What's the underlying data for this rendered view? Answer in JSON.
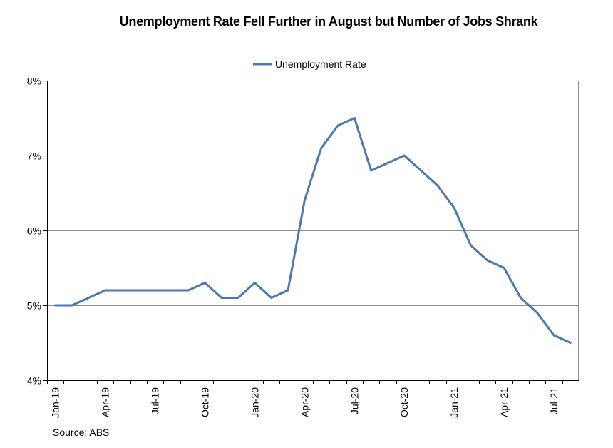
{
  "chart_data": {
    "type": "line",
    "title": "Unemployment Rate Fell Further in August but Number of Jobs Shrank",
    "source": "Source: ABS",
    "ylim": [
      4,
      8
    ],
    "y_ticks": [
      {
        "value": 4,
        "label": "4%"
      },
      {
        "value": 5,
        "label": "5%"
      },
      {
        "value": 6,
        "label": "6%"
      },
      {
        "value": 7,
        "label": "7%"
      },
      {
        "value": 8,
        "label": "8%"
      }
    ],
    "x": [
      "Jan-19",
      "Feb-19",
      "Mar-19",
      "Apr-19",
      "May-19",
      "Jun-19",
      "Jul-19",
      "Aug-19",
      "Sep-19",
      "Oct-19",
      "Nov-19",
      "Dec-19",
      "Jan-20",
      "Feb-20",
      "Mar-20",
      "Apr-20",
      "May-20",
      "Jun-20",
      "Jul-20",
      "Aug-20",
      "Sep-20",
      "Oct-20",
      "Nov-20",
      "Dec-20",
      "Jan-21",
      "Feb-21",
      "Mar-21",
      "Apr-21",
      "May-21",
      "Jun-21",
      "Jul-21",
      "Aug-21"
    ],
    "x_tick_labels": [
      "Jan-19",
      "Apr-19",
      "Jul-19",
      "Oct-19",
      "Jan-20",
      "Apr-20",
      "Jul-20",
      "Oct-20",
      "Jan-21",
      "Apr-21",
      "Jul-21"
    ],
    "x_tick_label_every": 3,
    "series": [
      {
        "name": "Unemployment Rate",
        "color": "#4a78b0",
        "values": [
          5.0,
          5.0,
          5.1,
          5.2,
          5.2,
          5.2,
          5.2,
          5.2,
          5.2,
          5.3,
          5.1,
          5.1,
          5.3,
          5.1,
          5.2,
          6.4,
          7.1,
          7.4,
          7.5,
          6.8,
          6.9,
          7.0,
          6.8,
          6.6,
          6.3,
          5.8,
          5.6,
          5.5,
          5.1,
          4.9,
          4.6,
          4.5
        ]
      }
    ],
    "legend": "top-center",
    "grid": true,
    "gridline_color": "#8c8c8c"
  }
}
